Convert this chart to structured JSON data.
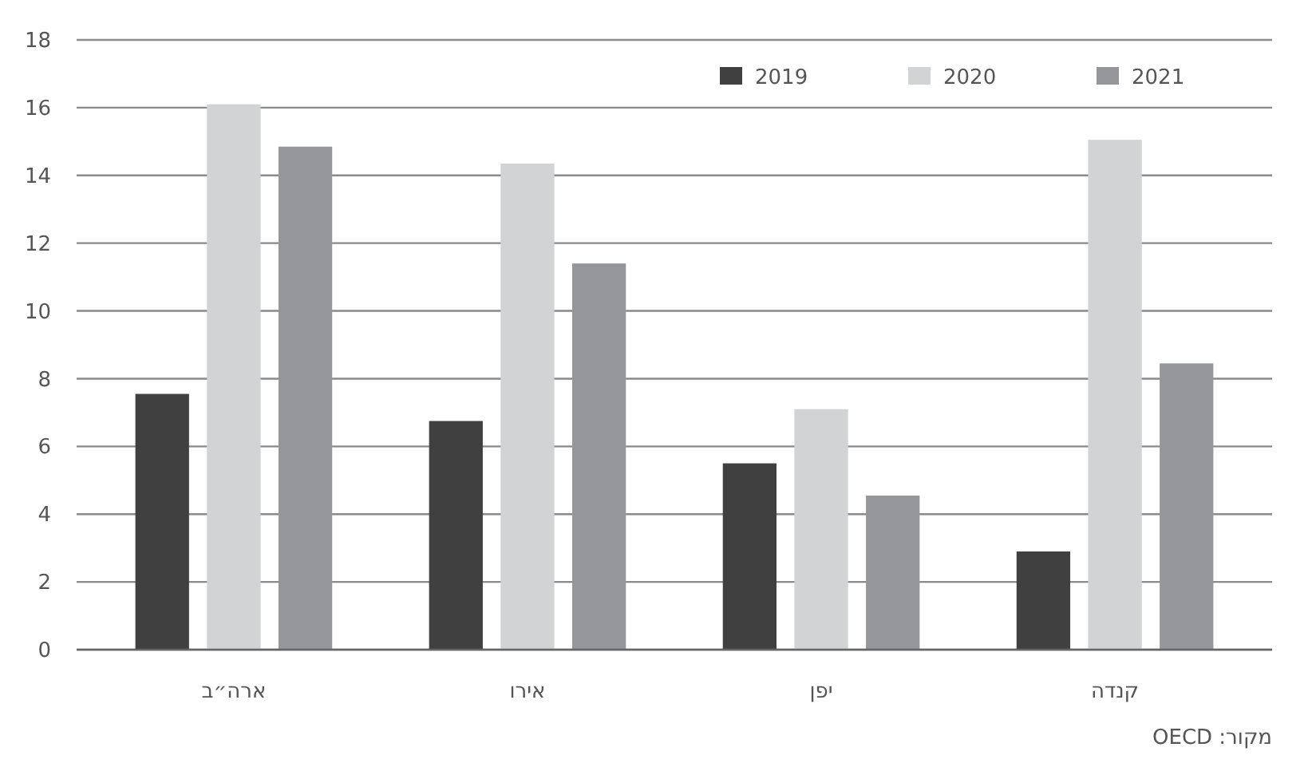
{
  "chart_data": {
    "type": "bar",
    "categories": [
      "ארה״ב",
      "אירו",
      "יפן",
      "קנדה"
    ],
    "series": [
      {
        "name": "2019",
        "color": "#404040",
        "values": [
          7.55,
          6.75,
          5.5,
          2.9
        ]
      },
      {
        "name": "2020",
        "color": "#d2d3d5",
        "values": [
          16.1,
          14.35,
          7.1,
          15.05
        ]
      },
      {
        "name": "2021",
        "color": "#959699",
        "values": [
          14.85,
          11.4,
          4.55,
          8.45
        ]
      }
    ],
    "ylim": [
      0,
      18
    ],
    "yticks": [
      0,
      2,
      4,
      6,
      8,
      10,
      12,
      14,
      16,
      18
    ],
    "grid": "y",
    "legend": "top right",
    "annotations": [
      "מקור: OECD"
    ]
  }
}
